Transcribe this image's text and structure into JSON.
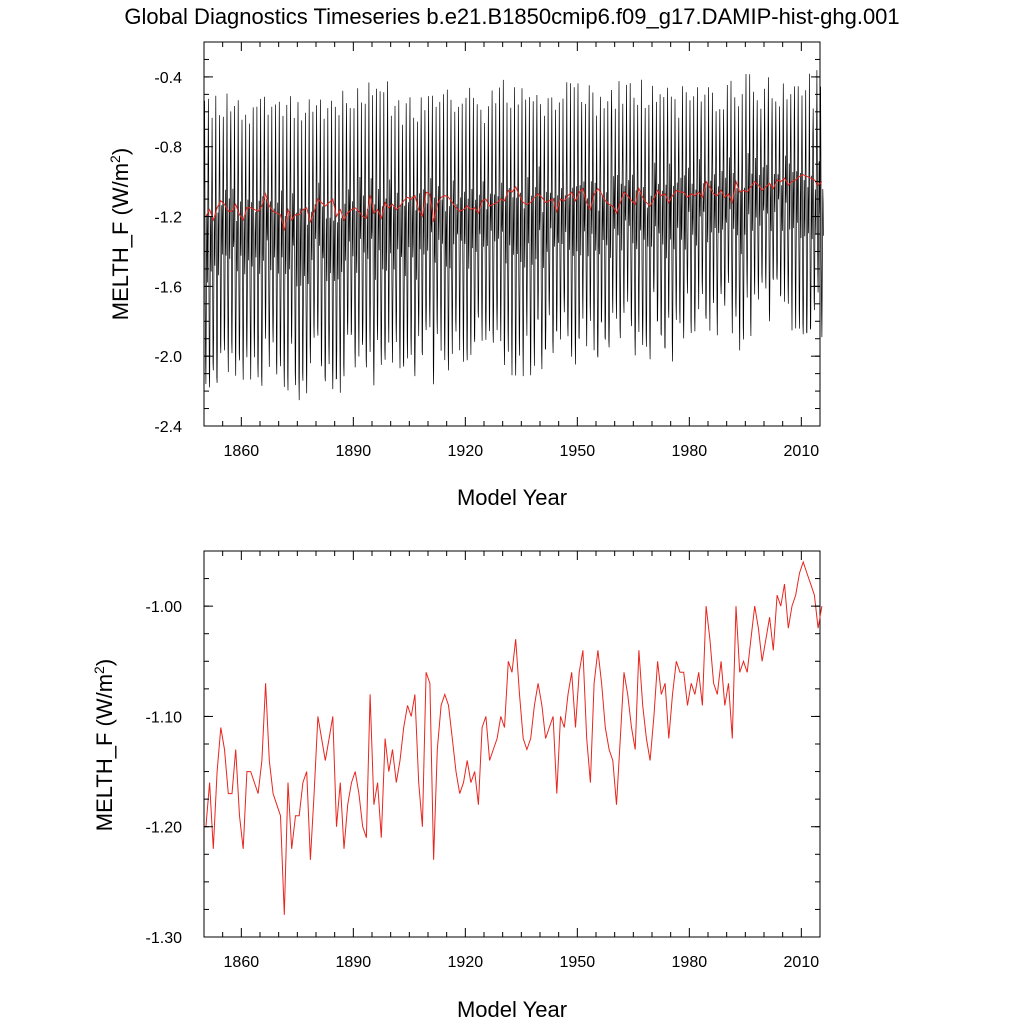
{
  "title": "Global Diagnostics Timeseries b.e21.B1850cmip6.f09_g17.DAMIP-hist-ghg.001",
  "colors": {
    "monthly": "#000000",
    "annual": "#e8261e",
    "axis": "#000000",
    "background": "#ffffff"
  },
  "chart_data": [
    {
      "type": "line",
      "xlabel": "Model Year",
      "ylabel": "MELTH_F (W/m²)",
      "ylabel_base": "MELTH_F (W/m",
      "ylabel_sup": "2",
      "ylabel_end": ")",
      "xlim": [
        1850,
        2015
      ],
      "ylim": [
        -2.4,
        -0.2
      ],
      "xticks": [
        1860,
        1890,
        1920,
        1950,
        1980,
        2010
      ],
      "yticks": [
        -2.4,
        -2.0,
        -1.6,
        -1.2,
        -0.8,
        -0.4
      ],
      "ytick_labels": [
        "-2.4",
        "-2.0",
        "-1.6",
        "-1.2",
        "-0.8",
        "-0.4"
      ],
      "series": [
        {
          "role": "monthly",
          "color": "#000000",
          "x_start": 1850,
          "x_step": 0.08333,
          "monthly_pattern_note": "annual cycle, maxima near -0.5 to -0.4, minima near -2.0 to -2.35",
          "max_start": -0.55,
          "max_end": -0.45,
          "min_start": -2.15,
          "min_end": -1.75
        },
        {
          "role": "annual",
          "color": "#e8261e",
          "ref": "annual_mean"
        }
      ]
    },
    {
      "type": "line",
      "xlabel": "Model Year",
      "ylabel": "MELTH_F (W/m²)",
      "ylabel_base": "MELTH_F (W/m",
      "ylabel_sup": "2",
      "ylabel_end": ")",
      "xlim": [
        1850,
        2015
      ],
      "ylim": [
        -1.3,
        -0.95
      ],
      "xticks": [
        1860,
        1890,
        1920,
        1950,
        1980,
        2010
      ],
      "yticks": [
        -1.3,
        -1.2,
        -1.1,
        -1.0
      ],
      "ytick_labels": [
        "-1.30",
        "-1.20",
        "-1.10",
        "-1.00"
      ],
      "series": [
        {
          "role": "annual",
          "color": "#e8261e",
          "ref": "annual_mean"
        }
      ]
    }
  ],
  "annual_mean": {
    "x_start": 1850,
    "values": [
      -1.2,
      -1.16,
      -1.22,
      -1.15,
      -1.11,
      -1.13,
      -1.17,
      -1.17,
      -1.13,
      -1.19,
      -1.22,
      -1.15,
      -1.15,
      -1.16,
      -1.17,
      -1.14,
      -1.07,
      -1.14,
      -1.17,
      -1.18,
      -1.19,
      -1.28,
      -1.16,
      -1.22,
      -1.19,
      -1.19,
      -1.16,
      -1.15,
      -1.23,
      -1.17,
      -1.1,
      -1.12,
      -1.14,
      -1.12,
      -1.1,
      -1.2,
      -1.16,
      -1.22,
      -1.18,
      -1.16,
      -1.15,
      -1.17,
      -1.2,
      -1.21,
      -1.08,
      -1.18,
      -1.16,
      -1.21,
      -1.12,
      -1.15,
      -1.13,
      -1.16,
      -1.14,
      -1.11,
      -1.09,
      -1.1,
      -1.08,
      -1.16,
      -1.2,
      -1.06,
      -1.07,
      -1.23,
      -1.13,
      -1.09,
      -1.08,
      -1.09,
      -1.12,
      -1.15,
      -1.17,
      -1.16,
      -1.14,
      -1.16,
      -1.15,
      -1.18,
      -1.11,
      -1.1,
      -1.14,
      -1.13,
      -1.12,
      -1.1,
      -1.11,
      -1.05,
      -1.06,
      -1.03,
      -1.08,
      -1.12,
      -1.13,
      -1.12,
      -1.09,
      -1.07,
      -1.09,
      -1.12,
      -1.11,
      -1.1,
      -1.17,
      -1.1,
      -1.11,
      -1.08,
      -1.06,
      -1.11,
      -1.06,
      -1.04,
      -1.12,
      -1.16,
      -1.07,
      -1.04,
      -1.07,
      -1.11,
      -1.13,
      -1.14,
      -1.18,
      -1.12,
      -1.06,
      -1.08,
      -1.11,
      -1.13,
      -1.04,
      -1.09,
      -1.12,
      -1.14,
      -1.1,
      -1.05,
      -1.08,
      -1.07,
      -1.12,
      -1.08,
      -1.05,
      -1.06,
      -1.06,
      -1.09,
      -1.07,
      -1.08,
      -1.06,
      -1.09,
      -1.0,
      -1.03,
      -1.07,
      -1.08,
      -1.05,
      -1.09,
      -1.07,
      -1.12,
      -1.0,
      -1.06,
      -1.05,
      -1.06,
      -1.03,
      -1.0,
      -1.02,
      -1.05,
      -1.03,
      -1.01,
      -1.04,
      -0.99,
      -1.0,
      -0.98,
      -1.02,
      -1.0,
      -0.99,
      -0.97,
      -0.96,
      -0.97,
      -0.98,
      -0.99,
      -1.02,
      -1.0
    ]
  },
  "xaxis_tick_labels": [
    "1860",
    "1890",
    "1920",
    "1950",
    "1980",
    "2010"
  ]
}
